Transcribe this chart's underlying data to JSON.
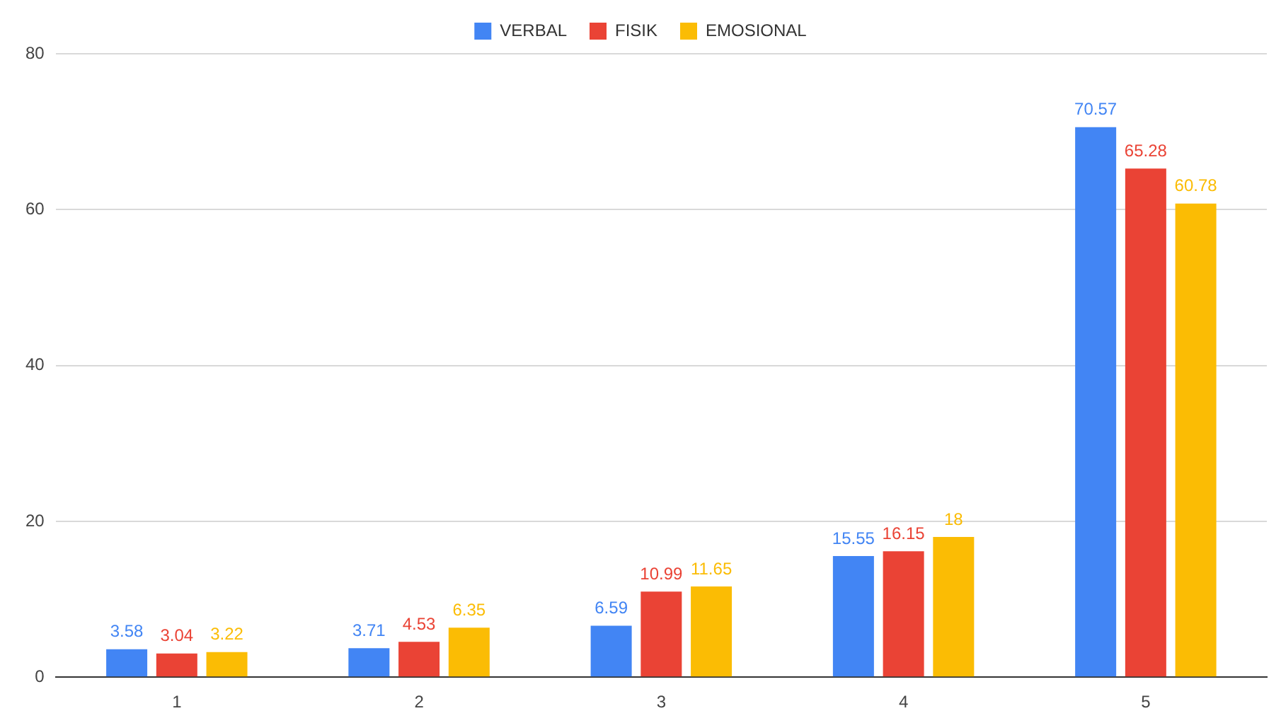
{
  "chart_data": {
    "type": "bar",
    "categories": [
      "1",
      "2",
      "3",
      "4",
      "5"
    ],
    "series": [
      {
        "name": "VERBAL",
        "color": "#4285f4",
        "values": [
          3.58,
          3.71,
          6.59,
          15.55,
          70.57
        ]
      },
      {
        "name": "FISIK",
        "color": "#ea4335",
        "values": [
          3.04,
          4.53,
          10.99,
          16.15,
          65.28
        ]
      },
      {
        "name": "EMOSIONAL",
        "color": "#fbbc04",
        "values": [
          3.22,
          6.35,
          11.65,
          18,
          60.78
        ]
      }
    ],
    "ylim": [
      0,
      80
    ],
    "yticks": [
      0,
      20,
      40,
      60,
      80
    ],
    "grid": "y",
    "legend": "top",
    "data_labels": true
  }
}
